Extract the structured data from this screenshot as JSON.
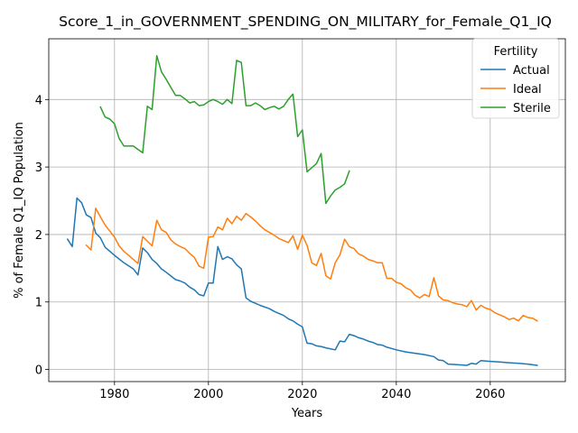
{
  "chart_data": {
    "type": "line",
    "title": "Score_1_in_GOVERNMENT_SPENDING_ON_MILITARY_for_Female_Q1_IQ",
    "xlabel": "Years",
    "ylabel": "% of Female Q1_IQ Population",
    "xlim": [
      1966,
      2076
    ],
    "ylim": [
      -0.18,
      4.9
    ],
    "xticks": [
      1980,
      2000,
      2020,
      2040,
      2060
    ],
    "yticks": [
      0,
      1,
      2,
      3,
      4
    ],
    "grid": true,
    "legend": {
      "title": "Fertility",
      "placement": "top-right"
    },
    "series": [
      {
        "name": "Actual",
        "color": "#1f77b4",
        "points": [
          [
            1970,
            1.93
          ],
          [
            1971,
            1.82
          ],
          [
            1972,
            2.54
          ],
          [
            1973,
            2.47
          ],
          [
            1974,
            2.29
          ],
          [
            1975,
            2.25
          ],
          [
            1976,
            2.02
          ],
          [
            1977,
            1.95
          ],
          [
            1978,
            1.81
          ],
          [
            1979,
            1.75
          ],
          [
            1980,
            1.69
          ],
          [
            1982,
            1.58
          ],
          [
            1984,
            1.49
          ],
          [
            1985,
            1.4
          ],
          [
            1986,
            1.8
          ],
          [
            1987,
            1.73
          ],
          [
            1988,
            1.63
          ],
          [
            1989,
            1.57
          ],
          [
            1990,
            1.49
          ],
          [
            1991,
            1.44
          ],
          [
            1993,
            1.33
          ],
          [
            1994,
            1.31
          ],
          [
            1995,
            1.28
          ],
          [
            1996,
            1.22
          ],
          [
            1997,
            1.18
          ],
          [
            1998,
            1.11
          ],
          [
            1999,
            1.09
          ],
          [
            2000,
            1.28
          ],
          [
            2001,
            1.28
          ],
          [
            2002,
            1.82
          ],
          [
            2003,
            1.63
          ],
          [
            2004,
            1.67
          ],
          [
            2005,
            1.64
          ],
          [
            2006,
            1.55
          ],
          [
            2007,
            1.49
          ],
          [
            2008,
            1.06
          ],
          [
            2009,
            1.01
          ],
          [
            2010,
            0.98
          ],
          [
            2011,
            0.95
          ],
          [
            2013,
            0.9
          ],
          [
            2014,
            0.86
          ],
          [
            2015,
            0.83
          ],
          [
            2016,
            0.8
          ],
          [
            2017,
            0.75
          ],
          [
            2018,
            0.72
          ],
          [
            2019,
            0.67
          ],
          [
            2020,
            0.63
          ],
          [
            2021,
            0.39
          ],
          [
            2022,
            0.38
          ],
          [
            2023,
            0.35
          ],
          [
            2024,
            0.34
          ],
          [
            2025,
            0.32
          ],
          [
            2027,
            0.29
          ],
          [
            2028,
            0.42
          ],
          [
            2029,
            0.41
          ],
          [
            2030,
            0.52
          ],
          [
            2031,
            0.5
          ],
          [
            2032,
            0.47
          ],
          [
            2033,
            0.45
          ],
          [
            2034,
            0.42
          ],
          [
            2035,
            0.4
          ],
          [
            2036,
            0.37
          ],
          [
            2037,
            0.36
          ],
          [
            2038,
            0.33
          ],
          [
            2039,
            0.31
          ],
          [
            2040,
            0.29
          ],
          [
            2042,
            0.26
          ],
          [
            2044,
            0.24
          ],
          [
            2046,
            0.22
          ],
          [
            2048,
            0.19
          ],
          [
            2049,
            0.14
          ],
          [
            2050,
            0.13
          ],
          [
            2051,
            0.08
          ],
          [
            2053,
            0.07
          ],
          [
            2055,
            0.06
          ],
          [
            2056,
            0.09
          ],
          [
            2057,
            0.08
          ],
          [
            2058,
            0.13
          ],
          [
            2060,
            0.12
          ],
          [
            2062,
            0.11
          ],
          [
            2064,
            0.1
          ],
          [
            2066,
            0.09
          ],
          [
            2068,
            0.08
          ],
          [
            2070,
            0.06
          ]
        ]
      },
      {
        "name": "Ideal",
        "color": "#ff7f0e",
        "points": [
          [
            1974,
            1.84
          ],
          [
            1975,
            1.77
          ],
          [
            1976,
            2.39
          ],
          [
            1977,
            2.26
          ],
          [
            1978,
            2.14
          ],
          [
            1979,
            2.05
          ],
          [
            1980,
            1.96
          ],
          [
            1981,
            1.83
          ],
          [
            1982,
            1.75
          ],
          [
            1983,
            1.69
          ],
          [
            1984,
            1.63
          ],
          [
            1985,
            1.57
          ],
          [
            1986,
            1.97
          ],
          [
            1987,
            1.9
          ],
          [
            1988,
            1.83
          ],
          [
            1989,
            2.21
          ],
          [
            1990,
            2.07
          ],
          [
            1991,
            2.03
          ],
          [
            1992,
            1.92
          ],
          [
            1993,
            1.86
          ],
          [
            1994,
            1.82
          ],
          [
            1995,
            1.79
          ],
          [
            1996,
            1.72
          ],
          [
            1997,
            1.66
          ],
          [
            1998,
            1.53
          ],
          [
            1999,
            1.5
          ],
          [
            2000,
            1.96
          ],
          [
            2001,
            1.97
          ],
          [
            2002,
            2.11
          ],
          [
            2003,
            2.07
          ],
          [
            2004,
            2.24
          ],
          [
            2005,
            2.16
          ],
          [
            2006,
            2.27
          ],
          [
            2007,
            2.21
          ],
          [
            2008,
            2.31
          ],
          [
            2009,
            2.26
          ],
          [
            2010,
            2.2
          ],
          [
            2011,
            2.13
          ],
          [
            2012,
            2.07
          ],
          [
            2013,
            2.03
          ],
          [
            2014,
            1.99
          ],
          [
            2015,
            1.94
          ],
          [
            2017,
            1.88
          ],
          [
            2018,
            1.98
          ],
          [
            2019,
            1.78
          ],
          [
            2020,
            1.99
          ],
          [
            2021,
            1.84
          ],
          [
            2022,
            1.58
          ],
          [
            2023,
            1.54
          ],
          [
            2024,
            1.72
          ],
          [
            2025,
            1.39
          ],
          [
            2026,
            1.34
          ],
          [
            2027,
            1.58
          ],
          [
            2028,
            1.7
          ],
          [
            2029,
            1.93
          ],
          [
            2030,
            1.82
          ],
          [
            2031,
            1.79
          ],
          [
            2032,
            1.71
          ],
          [
            2033,
            1.68
          ],
          [
            2034,
            1.63
          ],
          [
            2035,
            1.61
          ],
          [
            2036,
            1.58
          ],
          [
            2037,
            1.58
          ],
          [
            2038,
            1.35
          ],
          [
            2039,
            1.35
          ],
          [
            2040,
            1.29
          ],
          [
            2041,
            1.27
          ],
          [
            2042,
            1.21
          ],
          [
            2043,
            1.18
          ],
          [
            2044,
            1.1
          ],
          [
            2045,
            1.06
          ],
          [
            2046,
            1.11
          ],
          [
            2047,
            1.08
          ],
          [
            2048,
            1.36
          ],
          [
            2049,
            1.09
          ],
          [
            2050,
            1.03
          ],
          [
            2051,
            1.02
          ],
          [
            2052,
            0.99
          ],
          [
            2053,
            0.97
          ],
          [
            2054,
            0.96
          ],
          [
            2055,
            0.93
          ],
          [
            2056,
            1.02
          ],
          [
            2057,
            0.88
          ],
          [
            2058,
            0.95
          ],
          [
            2059,
            0.91
          ],
          [
            2060,
            0.89
          ],
          [
            2061,
            0.84
          ],
          [
            2062,
            0.81
          ],
          [
            2063,
            0.78
          ],
          [
            2064,
            0.74
          ],
          [
            2065,
            0.76
          ],
          [
            2066,
            0.72
          ],
          [
            2067,
            0.8
          ],
          [
            2068,
            0.77
          ],
          [
            2069,
            0.76
          ],
          [
            2070,
            0.72
          ]
        ]
      },
      {
        "name": "Sterile",
        "color": "#2ca02c",
        "points": [
          [
            1977,
            3.89
          ],
          [
            1978,
            3.74
          ],
          [
            1979,
            3.71
          ],
          [
            1980,
            3.64
          ],
          [
            1981,
            3.42
          ],
          [
            1982,
            3.31
          ],
          [
            1984,
            3.31
          ],
          [
            1986,
            3.21
          ],
          [
            1987,
            3.9
          ],
          [
            1988,
            3.85
          ],
          [
            1989,
            4.65
          ],
          [
            1990,
            4.41
          ],
          [
            1991,
            4.3
          ],
          [
            1992,
            4.18
          ],
          [
            1993,
            4.06
          ],
          [
            1994,
            4.06
          ],
          [
            1995,
            4.01
          ],
          [
            1996,
            3.95
          ],
          [
            1997,
            3.97
          ],
          [
            1998,
            3.91
          ],
          [
            1999,
            3.92
          ],
          [
            2000,
            3.97
          ],
          [
            2001,
            4.0
          ],
          [
            2002,
            3.97
          ],
          [
            2003,
            3.93
          ],
          [
            2004,
            4.0
          ],
          [
            2005,
            3.94
          ],
          [
            2006,
            4.58
          ],
          [
            2007,
            4.55
          ],
          [
            2008,
            3.91
          ],
          [
            2009,
            3.91
          ],
          [
            2010,
            3.95
          ],
          [
            2011,
            3.91
          ],
          [
            2012,
            3.85
          ],
          [
            2013,
            3.88
          ],
          [
            2014,
            3.9
          ],
          [
            2015,
            3.86
          ],
          [
            2016,
            3.9
          ],
          [
            2017,
            4.0
          ],
          [
            2018,
            4.08
          ],
          [
            2019,
            3.45
          ],
          [
            2020,
            3.55
          ],
          [
            2021,
            2.93
          ],
          [
            2022,
            2.99
          ],
          [
            2023,
            3.05
          ],
          [
            2024,
            3.2
          ],
          [
            2025,
            2.46
          ],
          [
            2026,
            2.57
          ],
          [
            2027,
            2.66
          ],
          [
            2028,
            2.7
          ],
          [
            2029,
            2.75
          ],
          [
            2030,
            2.94
          ]
        ]
      }
    ]
  }
}
